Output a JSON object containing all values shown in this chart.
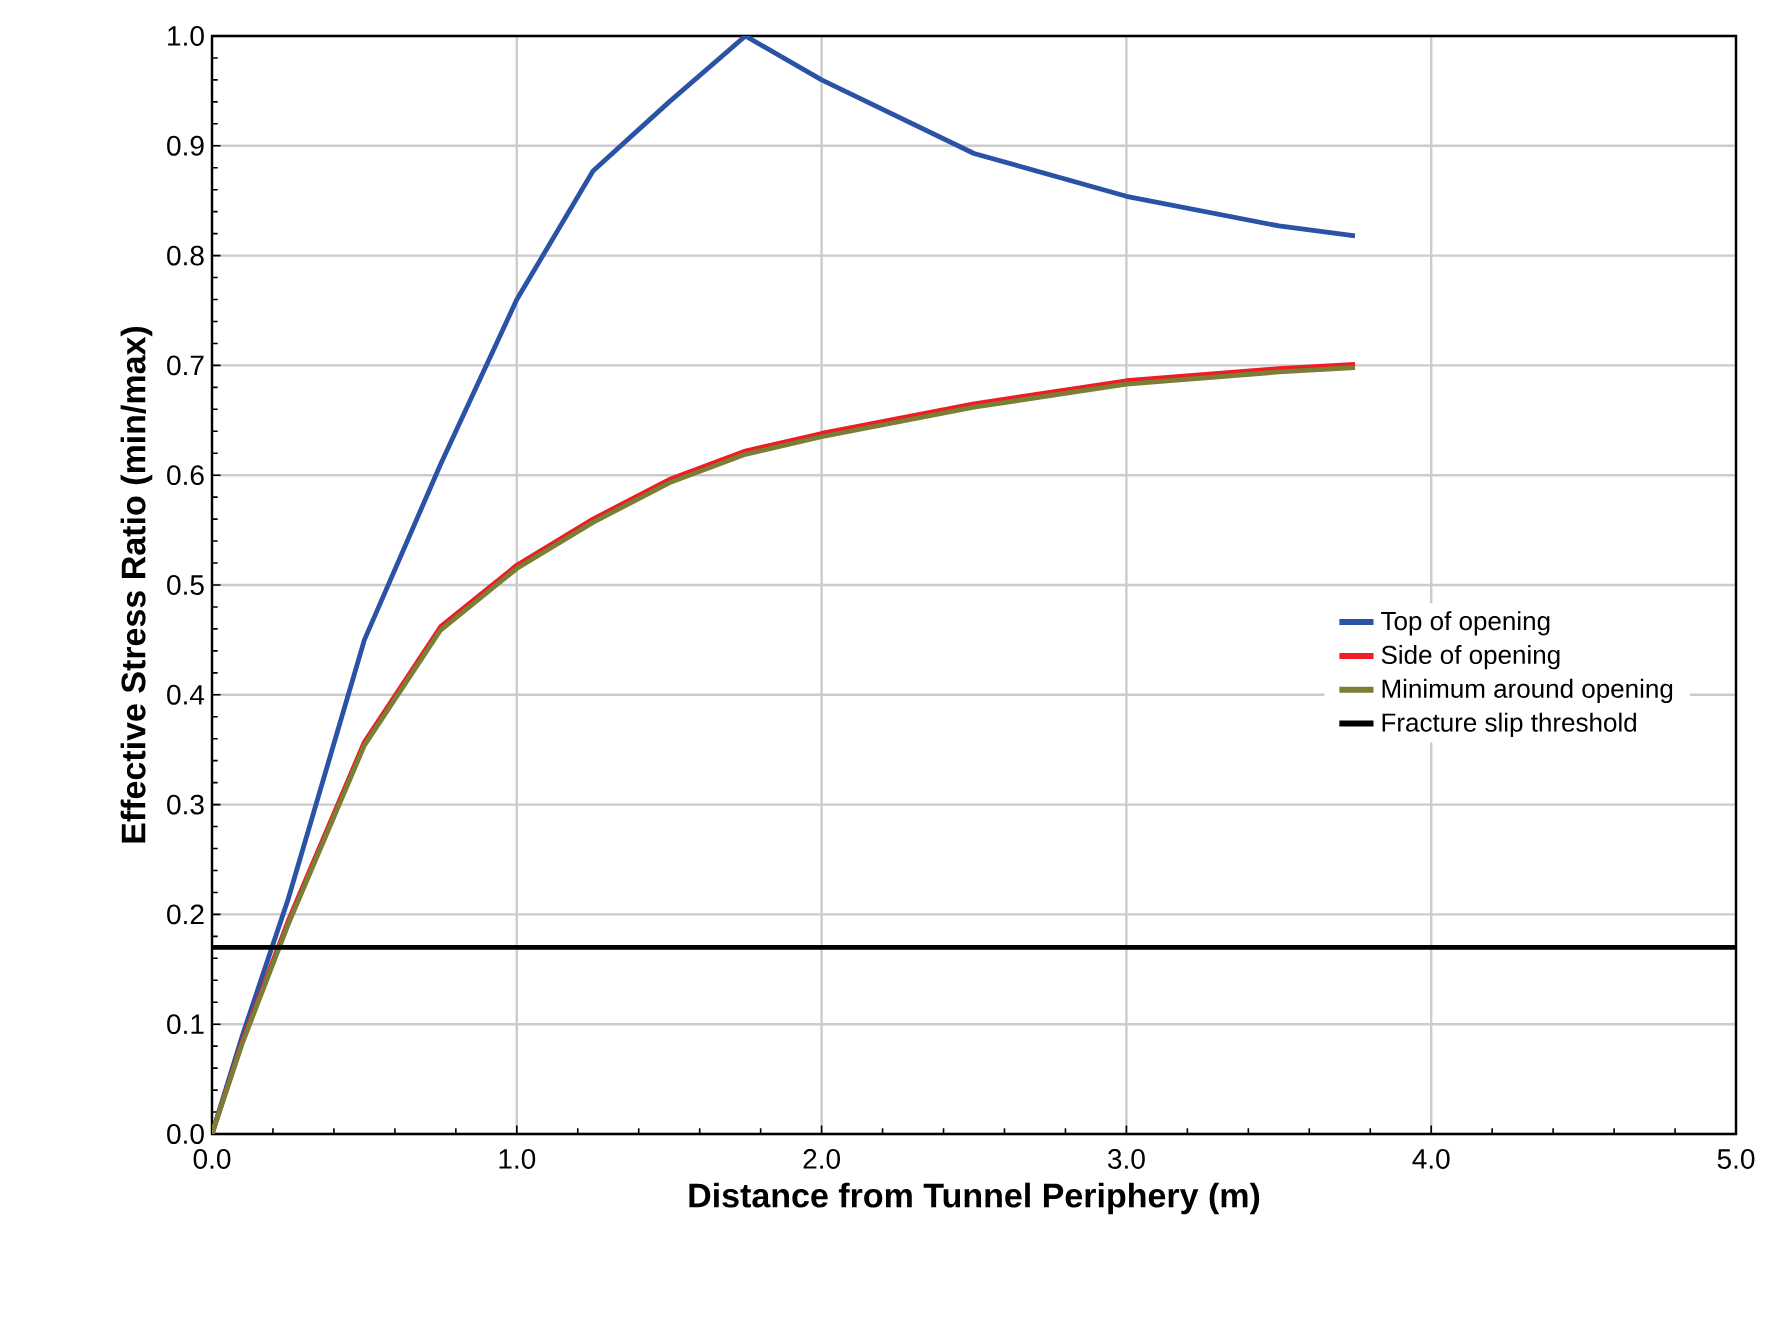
{
  "chart_data": {
    "type": "line",
    "xlabel": "Distance from Tunnel Periphery (m)",
    "ylabel": "Effective Stress Ratio (min/max)",
    "x": [
      0,
      0.1,
      0.25,
      0.5,
      0.75,
      1.0,
      1.25,
      1.5,
      1.75,
      2.0,
      2.5,
      3.0,
      3.5,
      3.75
    ],
    "series": [
      {
        "name": "Top of opening",
        "color": "#2a52a5",
        "values": [
          0,
          0.09,
          0.214,
          0.45,
          0.61,
          0.76,
          0.877,
          0.94,
          1.0,
          0.96,
          0.893,
          0.854,
          0.827,
          0.818
        ]
      },
      {
        "name": "Side of opening",
        "color": "#ee1c25",
        "values": [
          0,
          0.085,
          0.194,
          0.357,
          0.462,
          0.518,
          0.56,
          0.596,
          0.622,
          0.638,
          0.665,
          0.686,
          0.697,
          0.701
        ]
      },
      {
        "name": "Minimum around opening",
        "color": "#7a7f35",
        "values": [
          0,
          0.083,
          0.191,
          0.354,
          0.459,
          0.515,
          0.557,
          0.593,
          0.619,
          0.635,
          0.662,
          0.683,
          0.694,
          0.698
        ]
      }
    ],
    "ref_lines": [
      {
        "axis": "y",
        "value": 0.17,
        "label": "Fracture slip threshold",
        "color": "#000000"
      }
    ],
    "xlim": [
      0,
      5
    ],
    "ylim": [
      0,
      1
    ],
    "xticks": [
      {
        "value": 0,
        "label": "0.0"
      },
      {
        "value": 1,
        "label": "1.0"
      },
      {
        "value": 2,
        "label": "2.0"
      },
      {
        "value": 3,
        "label": "3.0"
      },
      {
        "value": 4,
        "label": "4.0"
      },
      {
        "value": 5,
        "label": "5.0"
      }
    ],
    "yticks": [
      {
        "value": 0,
        "label": "0.0"
      },
      {
        "value": 0.1,
        "label": "0.1"
      },
      {
        "value": 0.2,
        "label": "0.2"
      },
      {
        "value": 0.3,
        "label": "0.3"
      },
      {
        "value": 0.4,
        "label": "0.4"
      },
      {
        "value": 0.5,
        "label": "0.5"
      },
      {
        "value": 0.6,
        "label": "0.6"
      },
      {
        "value": 0.7,
        "label": "0.7"
      },
      {
        "value": 0.8,
        "label": "0.8"
      },
      {
        "value": 0.9,
        "label": "0.9"
      },
      {
        "value": 1,
        "label": "1.0"
      }
    ],
    "grid": true,
    "legend": "right",
    "marker": "none",
    "line_style": "solid"
  }
}
